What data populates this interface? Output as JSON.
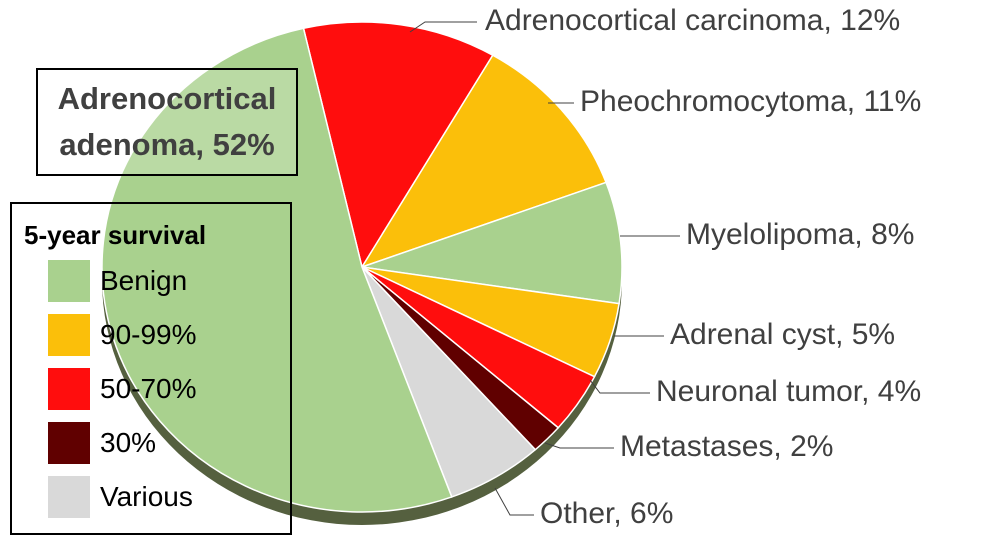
{
  "chart_data": {
    "type": "pie",
    "values": [
      12,
      11,
      8,
      5,
      4,
      2,
      6,
      52
    ],
    "value_labels": [
      "Adrenocortical carcinoma, 12%",
      "Pheochromocytoma, 11%",
      "Myelolipoma, 8%",
      "Adrenal cyst, 5%",
      "Neuronal tumor, 4%",
      "Metastases, 2%",
      "Other, 6%",
      "Adrenocortical adenoma, 52%"
    ],
    "colors": [
      "#ff0d0d",
      "#fbbf0a",
      "#a9d18e",
      "#fbbf0a",
      "#ff0d0d",
      "#600000",
      "#d9d9d9",
      "#a9d18e"
    ],
    "legend": {
      "title": "5-year survival",
      "items": [
        {
          "label": "Benign",
          "color": "#a9d18e"
        },
        {
          "label": "90-99%",
          "color": "#fbbf0a"
        },
        {
          "label": "50-70%",
          "color": "#ff0d0d"
        },
        {
          "label": "30%",
          "color": "#600000"
        },
        {
          "label": "Various",
          "color": "#d9d9d9"
        }
      ]
    }
  }
}
